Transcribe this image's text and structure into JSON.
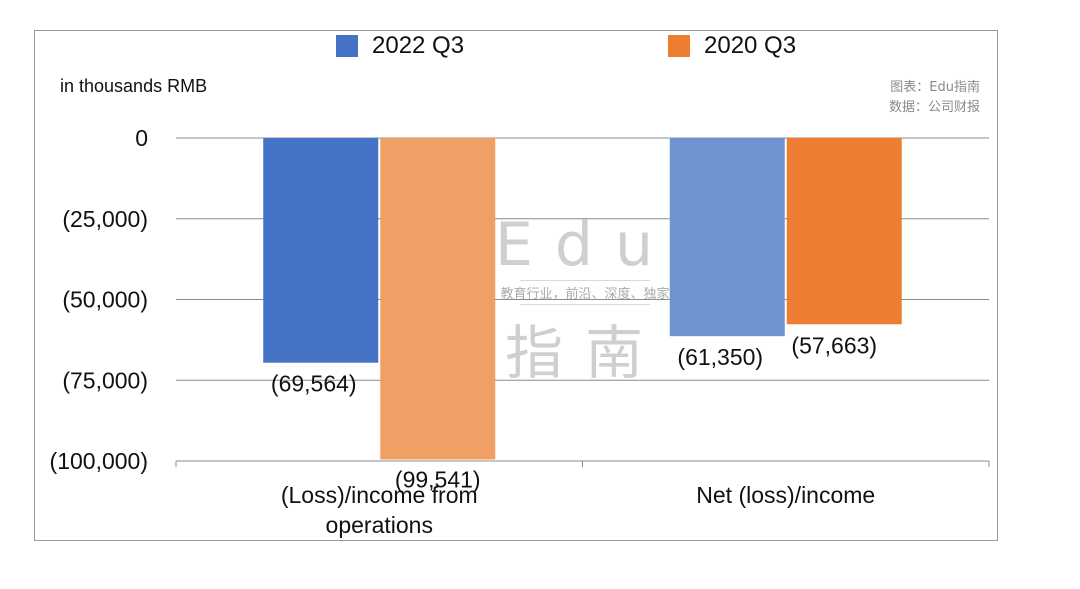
{
  "legend": [
    {
      "label": "2022 Q3",
      "color": "#4472c4"
    },
    {
      "label": "2020 Q3",
      "color": "#ed7d31"
    }
  ],
  "unit_label": "in thousands RMB",
  "source": {
    "line1": "图表：Edu指南",
    "line2": "数据：公司财报"
  },
  "watermark": {
    "top": "Edu",
    "middle": "教育行业，前沿、深度、独家",
    "bottom": "指南"
  },
  "chart_data": {
    "type": "bar",
    "categories": [
      "(Loss)/income from operations",
      "Net (loss)/income"
    ],
    "category_lines": [
      [
        "(Loss)/income from",
        "operations"
      ],
      [
        "Net (loss)/income"
      ]
    ],
    "series": [
      {
        "name": "2022 Q3",
        "values": [
          -69564,
          -61350
        ],
        "labels": [
          "(69,564)",
          "(61,350)"
        ],
        "bar_colors": [
          "#4472c4",
          "#6f93d1"
        ]
      },
      {
        "name": "2020 Q3",
        "values": [
          -99541,
          -57663
        ],
        "labels": [
          "(99,541)",
          "(57,663)"
        ],
        "bar_colors": [
          "#f0a064",
          "#ed7d31"
        ]
      }
    ],
    "ylim": [
      -100000,
      0
    ],
    "yticks": [
      0,
      -25000,
      -50000,
      -75000,
      -100000
    ],
    "ytick_labels": [
      "0",
      "(25,000)",
      "(50,000)",
      "(75,000)",
      "(100,000)"
    ],
    "grid": true,
    "legend_position": "top",
    "ylabel": "in thousands RMB"
  }
}
